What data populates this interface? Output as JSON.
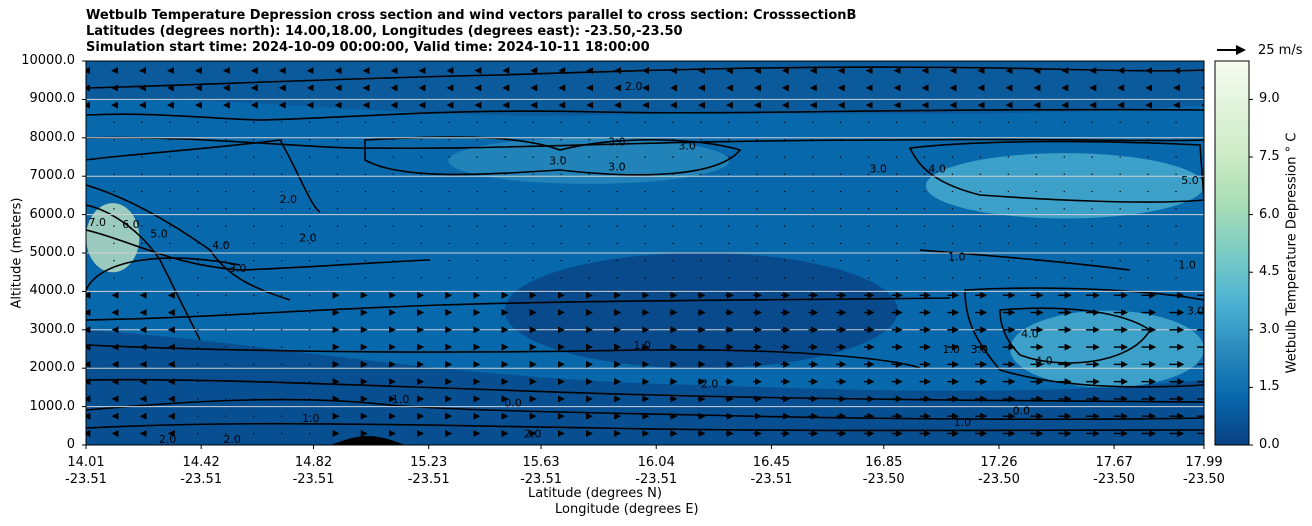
{
  "chart_data": {
    "type": "heatmap",
    "title_lines": [
      "Wetbulb Temperature Depression cross section and wind vectors parallel to cross section: CrosssectionB",
      "Latitudes (degrees north): 14.00,18.00, Longitudes (degrees east): -23.50,-23.50",
      "Simulation start time: 2024-10-09 00:00:00, Valid time: 2024-10-11 18:00:00"
    ],
    "xlabel": "Latitude (degrees N)",
    "xlabel2": "Longitude (degrees E)",
    "ylabel": "Altitude (meters)",
    "colorbar_label": "Wetbulb Temperature Depression ° C",
    "quiver_key": "25 m/s",
    "ylim": [
      0,
      10000
    ],
    "xlim": [
      14.01,
      17.99
    ],
    "y_ticks": [
      "0",
      "1000.0",
      "2000.0",
      "3000.0",
      "4000.0",
      "5000.0",
      "6000.0",
      "7000.0",
      "8000.0",
      "9000.0",
      "10000.0"
    ],
    "y_tick_values": [
      0,
      1000,
      2000,
      3000,
      4000,
      5000,
      6000,
      7000,
      8000,
      9000,
      10000
    ],
    "x_ticks": [
      {
        "lat": "14.01",
        "lon": "-23.51",
        "value": 14.01
      },
      {
        "lat": "14.42",
        "lon": "-23.51",
        "value": 14.42
      },
      {
        "lat": "14.82",
        "lon": "-23.51",
        "value": 14.82
      },
      {
        "lat": "15.23",
        "lon": "-23.51",
        "value": 15.23
      },
      {
        "lat": "15.63",
        "lon": "-23.51",
        "value": 15.63
      },
      {
        "lat": "16.04",
        "lon": "-23.51",
        "value": 16.04
      },
      {
        "lat": "16.45",
        "lon": "-23.51",
        "value": 16.45
      },
      {
        "lat": "16.85",
        "lon": "-23.50",
        "value": 16.85
      },
      {
        "lat": "17.26",
        "lon": "-23.50",
        "value": 17.26
      },
      {
        "lat": "17.67",
        "lon": "-23.50",
        "value": 17.67
      },
      {
        "lat": "17.99",
        "lon": "-23.50",
        "value": 17.99
      }
    ],
    "colorbar_ticks": [
      "0.0",
      "1.5",
      "3.0",
      "4.5",
      "6.0",
      "7.5",
      "9.0"
    ],
    "colorbar_tick_values": [
      0,
      1.5,
      3.0,
      4.5,
      6.0,
      7.5,
      9.0
    ],
    "colorbar_range": [
      0,
      10
    ],
    "colorbar_colors": [
      "#084081",
      "#0868ac",
      "#2b8cbe",
      "#4eb3d3",
      "#7bccc4",
      "#a8ddb5",
      "#ccebc5",
      "#e0f3db",
      "#f7fcf0"
    ],
    "regions": [
      {
        "level": "3.0",
        "lat": [
          15.3,
          16.3
        ],
        "alt": [
          6800,
          8000
        ]
      },
      {
        "level": "4.0",
        "lat": [
          17.0,
          17.99
        ],
        "alt": [
          5900,
          7600
        ]
      },
      {
        "level": "7.0",
        "lat": [
          14.01,
          14.2
        ],
        "alt": [
          4500,
          6300
        ]
      },
      {
        "level": "4.0",
        "lat": [
          17.3,
          17.99
        ],
        "alt": [
          1500,
          3500
        ]
      },
      {
        "level": "1.0",
        "lat": [
          15.5,
          16.9
        ],
        "alt": [
          2000,
          5000
        ]
      }
    ],
    "contour_labels": [
      {
        "text": "2.0",
        "lat": 15.96,
        "alt": 9250
      },
      {
        "text": "3.0",
        "lat": 15.9,
        "alt": 7800
      },
      {
        "text": "3.0",
        "lat": 15.9,
        "alt": 7150
      },
      {
        "text": "3.0",
        "lat": 15.69,
        "alt": 7300
      },
      {
        "text": "3.0",
        "lat": 16.15,
        "alt": 7700
      },
      {
        "text": "3.0",
        "lat": 16.83,
        "alt": 7100
      },
      {
        "text": "4.0",
        "lat": 17.04,
        "alt": 7100
      },
      {
        "text": "5.0",
        "lat": 17.94,
        "alt": 6800
      },
      {
        "text": "7.0",
        "lat": 14.05,
        "alt": 5700
      },
      {
        "text": "6.0",
        "lat": 14.17,
        "alt": 5650
      },
      {
        "text": "5.0",
        "lat": 14.27,
        "alt": 5400
      },
      {
        "text": "4.0",
        "lat": 14.49,
        "alt": 5100
      },
      {
        "text": "3.0",
        "lat": 14.55,
        "alt": 4500
      },
      {
        "text": "2.0",
        "lat": 14.73,
        "alt": 6300
      },
      {
        "text": "2.0",
        "lat": 14.8,
        "alt": 5300
      },
      {
        "text": "1.0",
        "lat": 17.11,
        "alt": 4800
      },
      {
        "text": "1.0",
        "lat": 17.93,
        "alt": 4600
      },
      {
        "text": "3.0",
        "lat": 17.96,
        "alt": 3400
      },
      {
        "text": "1.0",
        "lat": 15.99,
        "alt": 2500
      },
      {
        "text": "4.0",
        "lat": 17.37,
        "alt": 2800
      },
      {
        "text": "4.0",
        "lat": 17.42,
        "alt": 2100
      },
      {
        "text": "1.0",
        "lat": 17.09,
        "alt": 2400
      },
      {
        "text": "3.0",
        "lat": 17.19,
        "alt": 2400
      },
      {
        "text": "2.0",
        "lat": 16.23,
        "alt": 1500
      },
      {
        "text": "0.0",
        "lat": 17.34,
        "alt": 800
      },
      {
        "text": "1.0",
        "lat": 17.13,
        "alt": 500
      },
      {
        "text": "1.0",
        "lat": 14.81,
        "alt": 600
      },
      {
        "text": "1.0",
        "lat": 15.13,
        "alt": 1100
      },
      {
        "text": "0.0",
        "lat": 15.53,
        "alt": 1000
      },
      {
        "text": "2.0",
        "lat": 15.6,
        "alt": 200
      },
      {
        "text": "2.0",
        "lat": 14.3,
        "alt": 50
      },
      {
        "text": "2.0",
        "lat": 14.53,
        "alt": 50
      }
    ]
  }
}
